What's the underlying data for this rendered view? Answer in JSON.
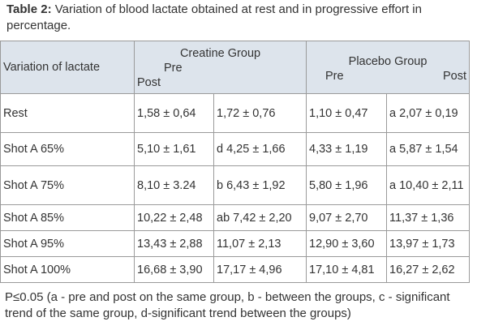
{
  "caption": {
    "label": "Table 2:",
    "text": "Variation of blood lactate obtained at rest and in progressive effort in percentage."
  },
  "header": {
    "first": "Variation of lactate",
    "groups": [
      {
        "name": "Creatine Group",
        "pre": "Pre",
        "post": "Post"
      },
      {
        "name": "Placebo Group",
        "pre": "Pre",
        "post": "Post"
      }
    ]
  },
  "table": {
    "rows": [
      [
        "Rest",
        "1,58 ± 0,64",
        "1,72 ± 0,76",
        "1,10 ± 0,47",
        "a 2,07 ± 0,19"
      ],
      [
        "Shot A 65%",
        "5,10 ± 1,61",
        "d 4,25 ± 1,66",
        "4,33 ± 1,19",
        "a 5,87 ± 1,54"
      ],
      [
        "Shot A 75%",
        "8,10 ± 3.24",
        "b 6,43 ± 1,92",
        "5,80 ± 1,96",
        "a 10,40 ± 2,11"
      ],
      [
        "Shot A 85%",
        "10,22 ± 2,48",
        "ab 7,42 ± 2,20",
        "9,07 ± 2,70",
        "11,37 ± 1,36"
      ],
      [
        "Shot A 95%",
        "13,43 ± 2,88",
        "11,07 ± 2,13",
        "12,90 ± 3,60",
        "13,97 ± 1,73"
      ],
      [
        "Shot A 100%",
        "16,68 ± 3,90",
        "17,17 ± 4,96",
        "17,10 ± 4,81",
        "16,27 ± 2,62"
      ]
    ]
  },
  "footnote": "P≤0.05 (a - pre and post on the same group, b - between the groups, c - significant trend of the same group, d-significant trend between the groups)"
}
